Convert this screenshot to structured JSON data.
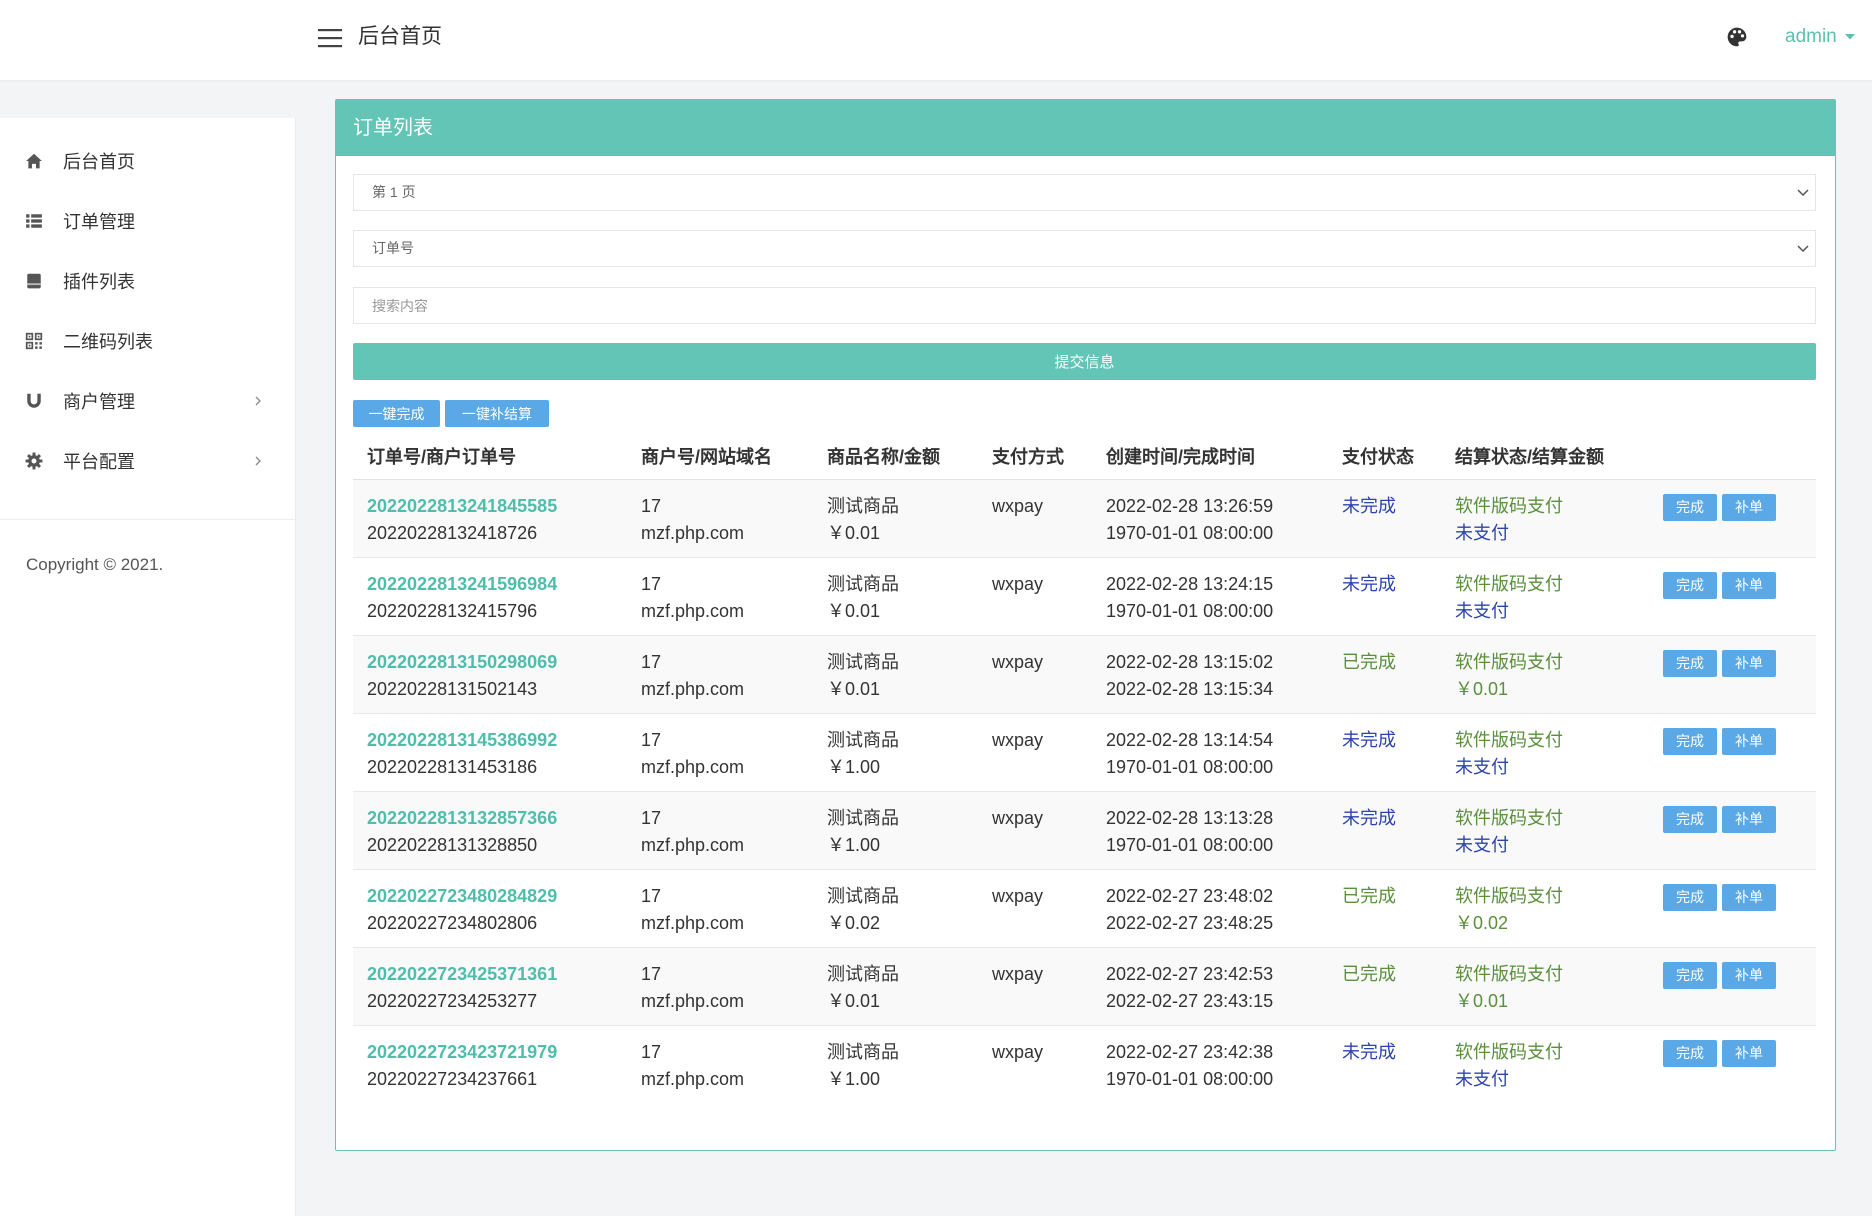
{
  "header": {
    "menu_icon": "hamburger-icon",
    "title": "后台首页",
    "theme_icon": "palette-icon",
    "user_name": "admin"
  },
  "sidebar": {
    "items": [
      {
        "label": "后台首页",
        "icon": "home-icon"
      },
      {
        "label": "订单管理",
        "icon": "list-icon"
      },
      {
        "label": "插件列表",
        "icon": "plugin-icon"
      },
      {
        "label": "二维码列表",
        "icon": "qrcode-icon"
      },
      {
        "label": "商户管理",
        "icon": "magnet-icon",
        "has_submenu": true
      },
      {
        "label": "平台配置",
        "icon": "gear-icon",
        "has_submenu": true
      }
    ],
    "copyright": "Copyright © 2021."
  },
  "panel": {
    "title": "订单列表",
    "page_select": {
      "selected": "第 1 页"
    },
    "field_select": {
      "selected": "订单号"
    },
    "search": {
      "placeholder": "搜索内容",
      "value": ""
    },
    "submit_label": "提交信息",
    "bulk_actions": {
      "complete_label": "一键完成",
      "settle_label": "一键补结算"
    }
  },
  "table": {
    "columns": [
      "订单号/商户订单号",
      "商户号/网站域名",
      "商品名称/金额",
      "支付方式",
      "创建时间/完成时间",
      "支付状态",
      "结算状态/结算金额"
    ],
    "action_labels": {
      "complete": "完成",
      "reissue": "补单"
    },
    "rows": [
      {
        "order_no": "2022022813241845585",
        "merchant_order_no": "20220228132418726",
        "merchant_id": "17",
        "domain": "mzf.php.com",
        "product": "测试商品",
        "amount": "￥0.01",
        "pay_method": "wxpay",
        "created_at": "2022-02-28 13:26:59",
        "completed_at": "1970-01-01 08:00:00",
        "pay_status": "未完成",
        "settle_method": "软件版码支付",
        "settle_info": "未支付"
      },
      {
        "order_no": "2022022813241596984",
        "merchant_order_no": "20220228132415796",
        "merchant_id": "17",
        "domain": "mzf.php.com",
        "product": "测试商品",
        "amount": "￥0.01",
        "pay_method": "wxpay",
        "created_at": "2022-02-28 13:24:15",
        "completed_at": "1970-01-01 08:00:00",
        "pay_status": "未完成",
        "settle_method": "软件版码支付",
        "settle_info": "未支付"
      },
      {
        "order_no": "2022022813150298069",
        "merchant_order_no": "20220228131502143",
        "merchant_id": "17",
        "domain": "mzf.php.com",
        "product": "测试商品",
        "amount": "￥0.01",
        "pay_method": "wxpay",
        "created_at": "2022-02-28 13:15:02",
        "completed_at": "2022-02-28 13:15:34",
        "pay_status": "已完成",
        "settle_method": "软件版码支付",
        "settle_info": "￥0.01"
      },
      {
        "order_no": "2022022813145386992",
        "merchant_order_no": "20220228131453186",
        "merchant_id": "17",
        "domain": "mzf.php.com",
        "product": "测试商品",
        "amount": "￥1.00",
        "pay_method": "wxpay",
        "created_at": "2022-02-28 13:14:54",
        "completed_at": "1970-01-01 08:00:00",
        "pay_status": "未完成",
        "settle_method": "软件版码支付",
        "settle_info": "未支付"
      },
      {
        "order_no": "2022022813132857366",
        "merchant_order_no": "20220228131328850",
        "merchant_id": "17",
        "domain": "mzf.php.com",
        "product": "测试商品",
        "amount": "￥1.00",
        "pay_method": "wxpay",
        "created_at": "2022-02-28 13:13:28",
        "completed_at": "1970-01-01 08:00:00",
        "pay_status": "未完成",
        "settle_method": "软件版码支付",
        "settle_info": "未支付"
      },
      {
        "order_no": "2022022723480284829",
        "merchant_order_no": "20220227234802806",
        "merchant_id": "17",
        "domain": "mzf.php.com",
        "product": "测试商品",
        "amount": "￥0.02",
        "pay_method": "wxpay",
        "created_at": "2022-02-27 23:48:02",
        "completed_at": "2022-02-27 23:48:25",
        "pay_status": "已完成",
        "settle_method": "软件版码支付",
        "settle_info": "￥0.02"
      },
      {
        "order_no": "2022022723425371361",
        "merchant_order_no": "20220227234253277",
        "merchant_id": "17",
        "domain": "mzf.php.com",
        "product": "测试商品",
        "amount": "￥0.01",
        "pay_method": "wxpay",
        "created_at": "2022-02-27 23:42:53",
        "completed_at": "2022-02-27 23:43:15",
        "pay_status": "已完成",
        "settle_method": "软件版码支付",
        "settle_info": "￥0.01"
      },
      {
        "order_no": "2022022723423721979",
        "merchant_order_no": "20220227234237661",
        "merchant_id": "17",
        "domain": "mzf.php.com",
        "product": "测试商品",
        "amount": "￥1.00",
        "pay_method": "wxpay",
        "created_at": "2022-02-27 23:42:38",
        "completed_at": "1970-01-01 08:00:00",
        "pay_status": "未完成",
        "settle_method": "软件版码支付",
        "settle_info": "未支付"
      }
    ]
  },
  "colors": {
    "accent": "#62c5b6",
    "button_blue": "#5aa9e6",
    "order_link": "#4fbdab",
    "status_pending": "#2c43b0",
    "status_done": "#5a8f3c"
  }
}
